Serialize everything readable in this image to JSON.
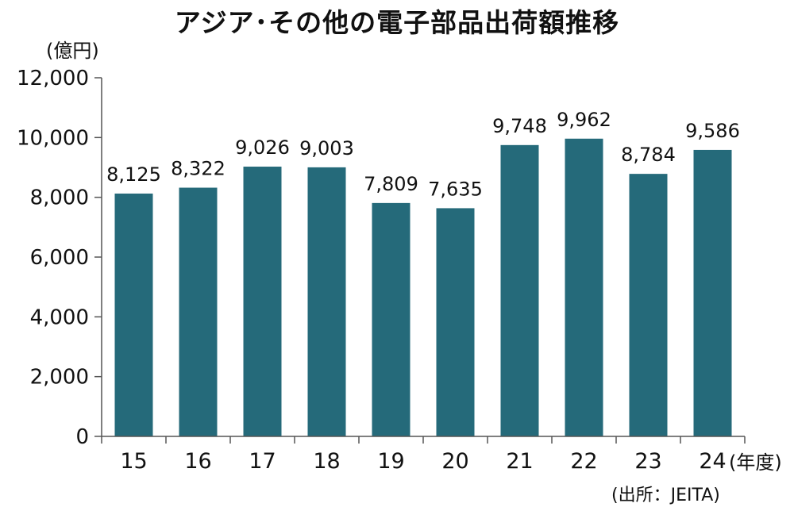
{
  "chart_data": {
    "type": "bar",
    "title": "アジア･その他の電子部品出荷額推移",
    "ylabel": "(億円)",
    "xlabel": "(年度)",
    "source": "(出所：JEITA)",
    "categories": [
      "15",
      "16",
      "17",
      "18",
      "19",
      "20",
      "21",
      "22",
      "23",
      "24"
    ],
    "values": [
      8125,
      8322,
      9026,
      9003,
      7809,
      7635,
      9748,
      9962,
      8784,
      9586
    ],
    "value_labels": [
      "8,125",
      "8,322",
      "9,026",
      "9,003",
      "7,809",
      "7,635",
      "9,748",
      "9,962",
      "8,784",
      "9,586"
    ],
    "ylim": [
      0,
      12000
    ],
    "yticks": [
      0,
      2000,
      4000,
      6000,
      8000,
      10000,
      12000
    ],
    "ytick_labels": [
      "0",
      "2,000",
      "4,000",
      "6,000",
      "8,000",
      "10,000",
      "12,000"
    ],
    "grid": false,
    "legend": "none",
    "bar_color": "#256a7a"
  }
}
